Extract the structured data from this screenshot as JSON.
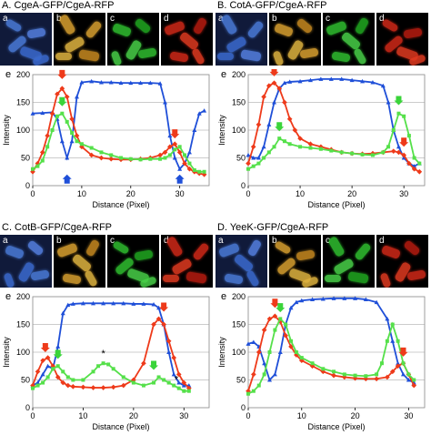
{
  "colors": {
    "gfp": "#55e04a",
    "rfp": "#ee3a1a",
    "blue": "#1f4fd8",
    "marker_green": "#3ad43a",
    "marker_red": "#ee3a1a",
    "marker_blue": "#1f4fd8"
  },
  "panels": [
    {
      "id": "A",
      "title": "A. CgeA-GFP/CgeA-RFP",
      "micro_labels": [
        "a",
        "b",
        "c",
        "d"
      ],
      "chart_label": "e",
      "chart_data": {
        "type": "line",
        "xlabel": "Distance (Pixel)",
        "ylabel": "Intensity",
        "xlim": [
          0,
          36
        ],
        "ylim": [
          0,
          200
        ],
        "xticks": [
          0,
          10,
          20,
          30
        ],
        "yticks": [
          0,
          50,
          100,
          150,
          200
        ],
        "series": [
          {
            "color": "blue",
            "x": [
              0,
              2,
              4,
              5,
              6,
              7,
              8,
              9,
              10,
              12,
              14,
              16,
              18,
              20,
              22,
              24,
              26,
              27,
              28,
              29,
              30,
              31,
              32,
              33,
              34,
              35
            ],
            "y": [
              130,
              131,
              132,
              120,
              80,
              50,
              80,
              160,
              186,
              188,
              186,
              186,
              185,
              185,
              185,
              185,
              184,
              150,
              90,
              50,
              30,
              40,
              60,
              100,
              130,
              135
            ]
          },
          {
            "color": "rfp",
            "x": [
              0,
              1,
              2,
              3,
              4,
              5,
              6,
              7,
              8,
              9,
              10,
              12,
              14,
              16,
              18,
              20,
              22,
              24,
              26,
              27,
              28,
              29,
              30,
              31,
              32,
              33,
              34,
              35
            ],
            "y": [
              25,
              40,
              60,
              90,
              130,
              165,
              175,
              160,
              120,
              90,
              70,
              55,
              50,
              48,
              47,
              47,
              48,
              50,
              55,
              60,
              70,
              75,
              60,
              40,
              30,
              25,
              22,
              20
            ]
          },
          {
            "color": "gfp",
            "x": [
              0,
              1,
              2,
              3,
              4,
              5,
              6,
              7,
              8,
              9,
              10,
              12,
              14,
              16,
              18,
              20,
              22,
              24,
              26,
              27,
              28,
              29,
              30,
              31,
              32,
              33,
              34,
              35
            ],
            "y": [
              30,
              35,
              45,
              70,
              100,
              125,
              130,
              115,
              95,
              80,
              75,
              68,
              60,
              55,
              50,
              48,
              47,
              48,
              48,
              50,
              55,
              65,
              70,
              55,
              40,
              28,
              25,
              25
            ]
          }
        ],
        "markers": [
          {
            "color": "marker_red",
            "x": 6,
            "y": 192,
            "dir": "down"
          },
          {
            "color": "marker_green",
            "x": 6,
            "y": 143,
            "dir": "down"
          },
          {
            "color": "marker_blue",
            "x": 7,
            "y": 20,
            "dir": "up"
          },
          {
            "color": "marker_red",
            "x": 29,
            "y": 85,
            "dir": "down"
          },
          {
            "color": "marker_blue",
            "x": 30,
            "y": 20,
            "dir": "up"
          }
        ]
      }
    },
    {
      "id": "B",
      "title": "B. CotA-GFP/CgeA-RFP",
      "micro_labels": [
        "a",
        "b",
        "c",
        "d"
      ],
      "chart_label": "e",
      "chart_data": {
        "type": "line",
        "xlabel": "Distance (Pixel)",
        "ylabel": "Intensity",
        "xlim": [
          0,
          34
        ],
        "ylim": [
          0,
          200
        ],
        "xticks": [
          0,
          10,
          20,
          30
        ],
        "yticks": [
          0,
          50,
          100,
          150,
          200
        ],
        "series": [
          {
            "color": "blue",
            "x": [
              0,
              1,
              2,
              3,
              4,
              5,
              6,
              7,
              8,
              10,
              12,
              14,
              16,
              18,
              20,
              22,
              24,
              26,
              27,
              28,
              29,
              30,
              31,
              32,
              33
            ],
            "y": [
              55,
              50,
              50,
              70,
              110,
              150,
              175,
              185,
              187,
              188,
              190,
              192,
              192,
              192,
              190,
              188,
              186,
              180,
              150,
              100,
              70,
              50,
              40,
              35,
              40
            ]
          },
          {
            "color": "rfp",
            "x": [
              0,
              1,
              2,
              3,
              4,
              5,
              6,
              7,
              8,
              9,
              10,
              12,
              14,
              16,
              18,
              20,
              22,
              24,
              26,
              28,
              29,
              30,
              31,
              32,
              33
            ],
            "y": [
              40,
              70,
              110,
              160,
              180,
              185,
              175,
              150,
              120,
              100,
              85,
              75,
              70,
              65,
              60,
              58,
              57,
              58,
              60,
              62,
              60,
              55,
              40,
              30,
              25
            ]
          },
          {
            "color": "gfp",
            "x": [
              0,
              1,
              2,
              3,
              4,
              5,
              6,
              7,
              8,
              10,
              12,
              14,
              16,
              18,
              20,
              22,
              24,
              26,
              27,
              28,
              29,
              30,
              31,
              32,
              33
            ],
            "y": [
              30,
              35,
              40,
              50,
              60,
              70,
              85,
              80,
              75,
              70,
              68,
              66,
              63,
              60,
              58,
              56,
              55,
              60,
              70,
              100,
              130,
              125,
              90,
              50,
              40
            ]
          }
        ],
        "markers": [
          {
            "color": "marker_red",
            "x": 5,
            "y": 197,
            "dir": "down"
          },
          {
            "color": "marker_green",
            "x": 6,
            "y": 98,
            "dir": "down"
          },
          {
            "color": "marker_green",
            "x": 29,
            "y": 145,
            "dir": "down"
          },
          {
            "color": "marker_red",
            "x": 30,
            "y": 70,
            "dir": "down"
          }
        ]
      }
    },
    {
      "id": "C",
      "title": "C. CotB-GFP/CgeA-RFP",
      "micro_labels": [
        "a",
        "b",
        "c",
        "d"
      ],
      "chart_label": "e",
      "chart_data": {
        "type": "line",
        "xlabel": "Distance (Pixel)",
        "ylabel": "Intensity",
        "xlim": [
          0,
          35
        ],
        "ylim": [
          0,
          200
        ],
        "xticks": [
          0,
          10,
          20,
          30
        ],
        "yticks": [
          0,
          50,
          100,
          150,
          200
        ],
        "series": [
          {
            "color": "blue",
            "x": [
              0,
              1,
              2,
              3,
              4,
              5,
              6,
              7,
              8,
              10,
              12,
              14,
              16,
              18,
              20,
              22,
              24,
              25,
              26,
              27,
              28,
              29,
              30,
              31
            ],
            "y": [
              40,
              45,
              60,
              75,
              70,
              110,
              170,
              185,
              187,
              188,
              188,
              188,
              188,
              188,
              187,
              187,
              186,
              180,
              150,
              100,
              60,
              45,
              40,
              40
            ]
          },
          {
            "color": "rfp",
            "x": [
              0,
              1,
              2,
              3,
              4,
              5,
              6,
              7,
              8,
              10,
              12,
              14,
              16,
              18,
              20,
              22,
              24,
              25,
              26,
              27,
              28,
              29,
              30,
              31
            ],
            "y": [
              40,
              65,
              85,
              90,
              75,
              55,
              45,
              40,
              38,
              37,
              36,
              36,
              37,
              40,
              50,
              80,
              150,
              160,
              150,
              120,
              90,
              60,
              45,
              35
            ]
          },
          {
            "color": "gfp",
            "x": [
              0,
              1,
              2,
              3,
              4,
              5,
              6,
              7,
              8,
              10,
              12,
              13,
              14,
              15,
              16,
              18,
              20,
              22,
              24,
              25,
              26,
              27,
              28,
              29,
              30,
              31
            ],
            "y": [
              35,
              40,
              45,
              55,
              70,
              75,
              65,
              55,
              50,
              50,
              65,
              75,
              80,
              78,
              70,
              55,
              45,
              40,
              45,
              55,
              50,
              45,
              40,
              35,
              30,
              30
            ]
          }
        ],
        "markers": [
          {
            "color": "marker_red",
            "x": 2.5,
            "y": 100,
            "dir": "down"
          },
          {
            "color": "marker_green",
            "x": 5,
            "y": 88,
            "dir": "down"
          },
          {
            "color": "marker_green",
            "x": 24,
            "y": 68,
            "dir": "down"
          },
          {
            "color": "marker_red",
            "x": 26,
            "y": 173,
            "dir": "down"
          }
        ],
        "annotations": [
          {
            "text": "*",
            "x": 14,
            "y": 92
          },
          {
            "text": "*",
            "x": 28.5,
            "y": 45
          }
        ]
      }
    },
    {
      "id": "D",
      "title": "D. YeeK-GFP/CgeA-RFP",
      "micro_labels": [
        "a",
        "b",
        "c",
        "d"
      ],
      "chart_label": "e",
      "chart_data": {
        "type": "line",
        "xlabel": "Distance (Pixel)",
        "ylabel": "Intensity",
        "xlim": [
          0,
          33
        ],
        "ylim": [
          0,
          200
        ],
        "xticks": [
          0,
          10,
          20,
          30
        ],
        "yticks": [
          0,
          50,
          100,
          150,
          200
        ],
        "series": [
          {
            "color": "blue",
            "x": [
              0,
              1,
              2,
              3,
              4,
              5,
              6,
              7,
              8,
              9,
              10,
              12,
              14,
              16,
              18,
              20,
              22,
              24,
              26,
              27,
              28,
              29,
              30,
              31
            ],
            "y": [
              115,
              118,
              110,
              80,
              50,
              60,
              100,
              150,
              180,
              190,
              193,
              195,
              196,
              197,
              197,
              197,
              195,
              190,
              160,
              120,
              80,
              60,
              50,
              45
            ]
          },
          {
            "color": "rfp",
            "x": [
              0,
              1,
              2,
              3,
              4,
              5,
              6,
              7,
              8,
              9,
              10,
              12,
              14,
              16,
              18,
              20,
              22,
              24,
              26,
              27,
              28,
              29,
              30,
              31
            ],
            "y": [
              30,
              60,
              100,
              140,
              160,
              165,
              155,
              130,
              110,
              95,
              85,
              75,
              65,
              58,
              55,
              53,
              52,
              52,
              55,
              65,
              75,
              80,
              60,
              40
            ]
          },
          {
            "color": "gfp",
            "x": [
              0,
              1,
              2,
              3,
              4,
              5,
              6,
              7,
              8,
              9,
              10,
              12,
              14,
              16,
              18,
              20,
              22,
              24,
              25,
              26,
              27,
              28,
              29,
              30,
              31
            ],
            "y": [
              25,
              30,
              40,
              60,
              100,
              140,
              160,
              150,
              120,
              100,
              90,
              80,
              70,
              65,
              60,
              58,
              57,
              60,
              80,
              120,
              150,
              120,
              80,
              60,
              50
            ]
          }
        ],
        "markers": [
          {
            "color": "marker_red",
            "x": 5,
            "y": 180,
            "dir": "down"
          },
          {
            "color": "marker_green",
            "x": 6,
            "y": 172,
            "dir": "down"
          },
          {
            "color": "marker_red",
            "x": 29,
            "y": 92,
            "dir": "down"
          }
        ]
      }
    }
  ]
}
